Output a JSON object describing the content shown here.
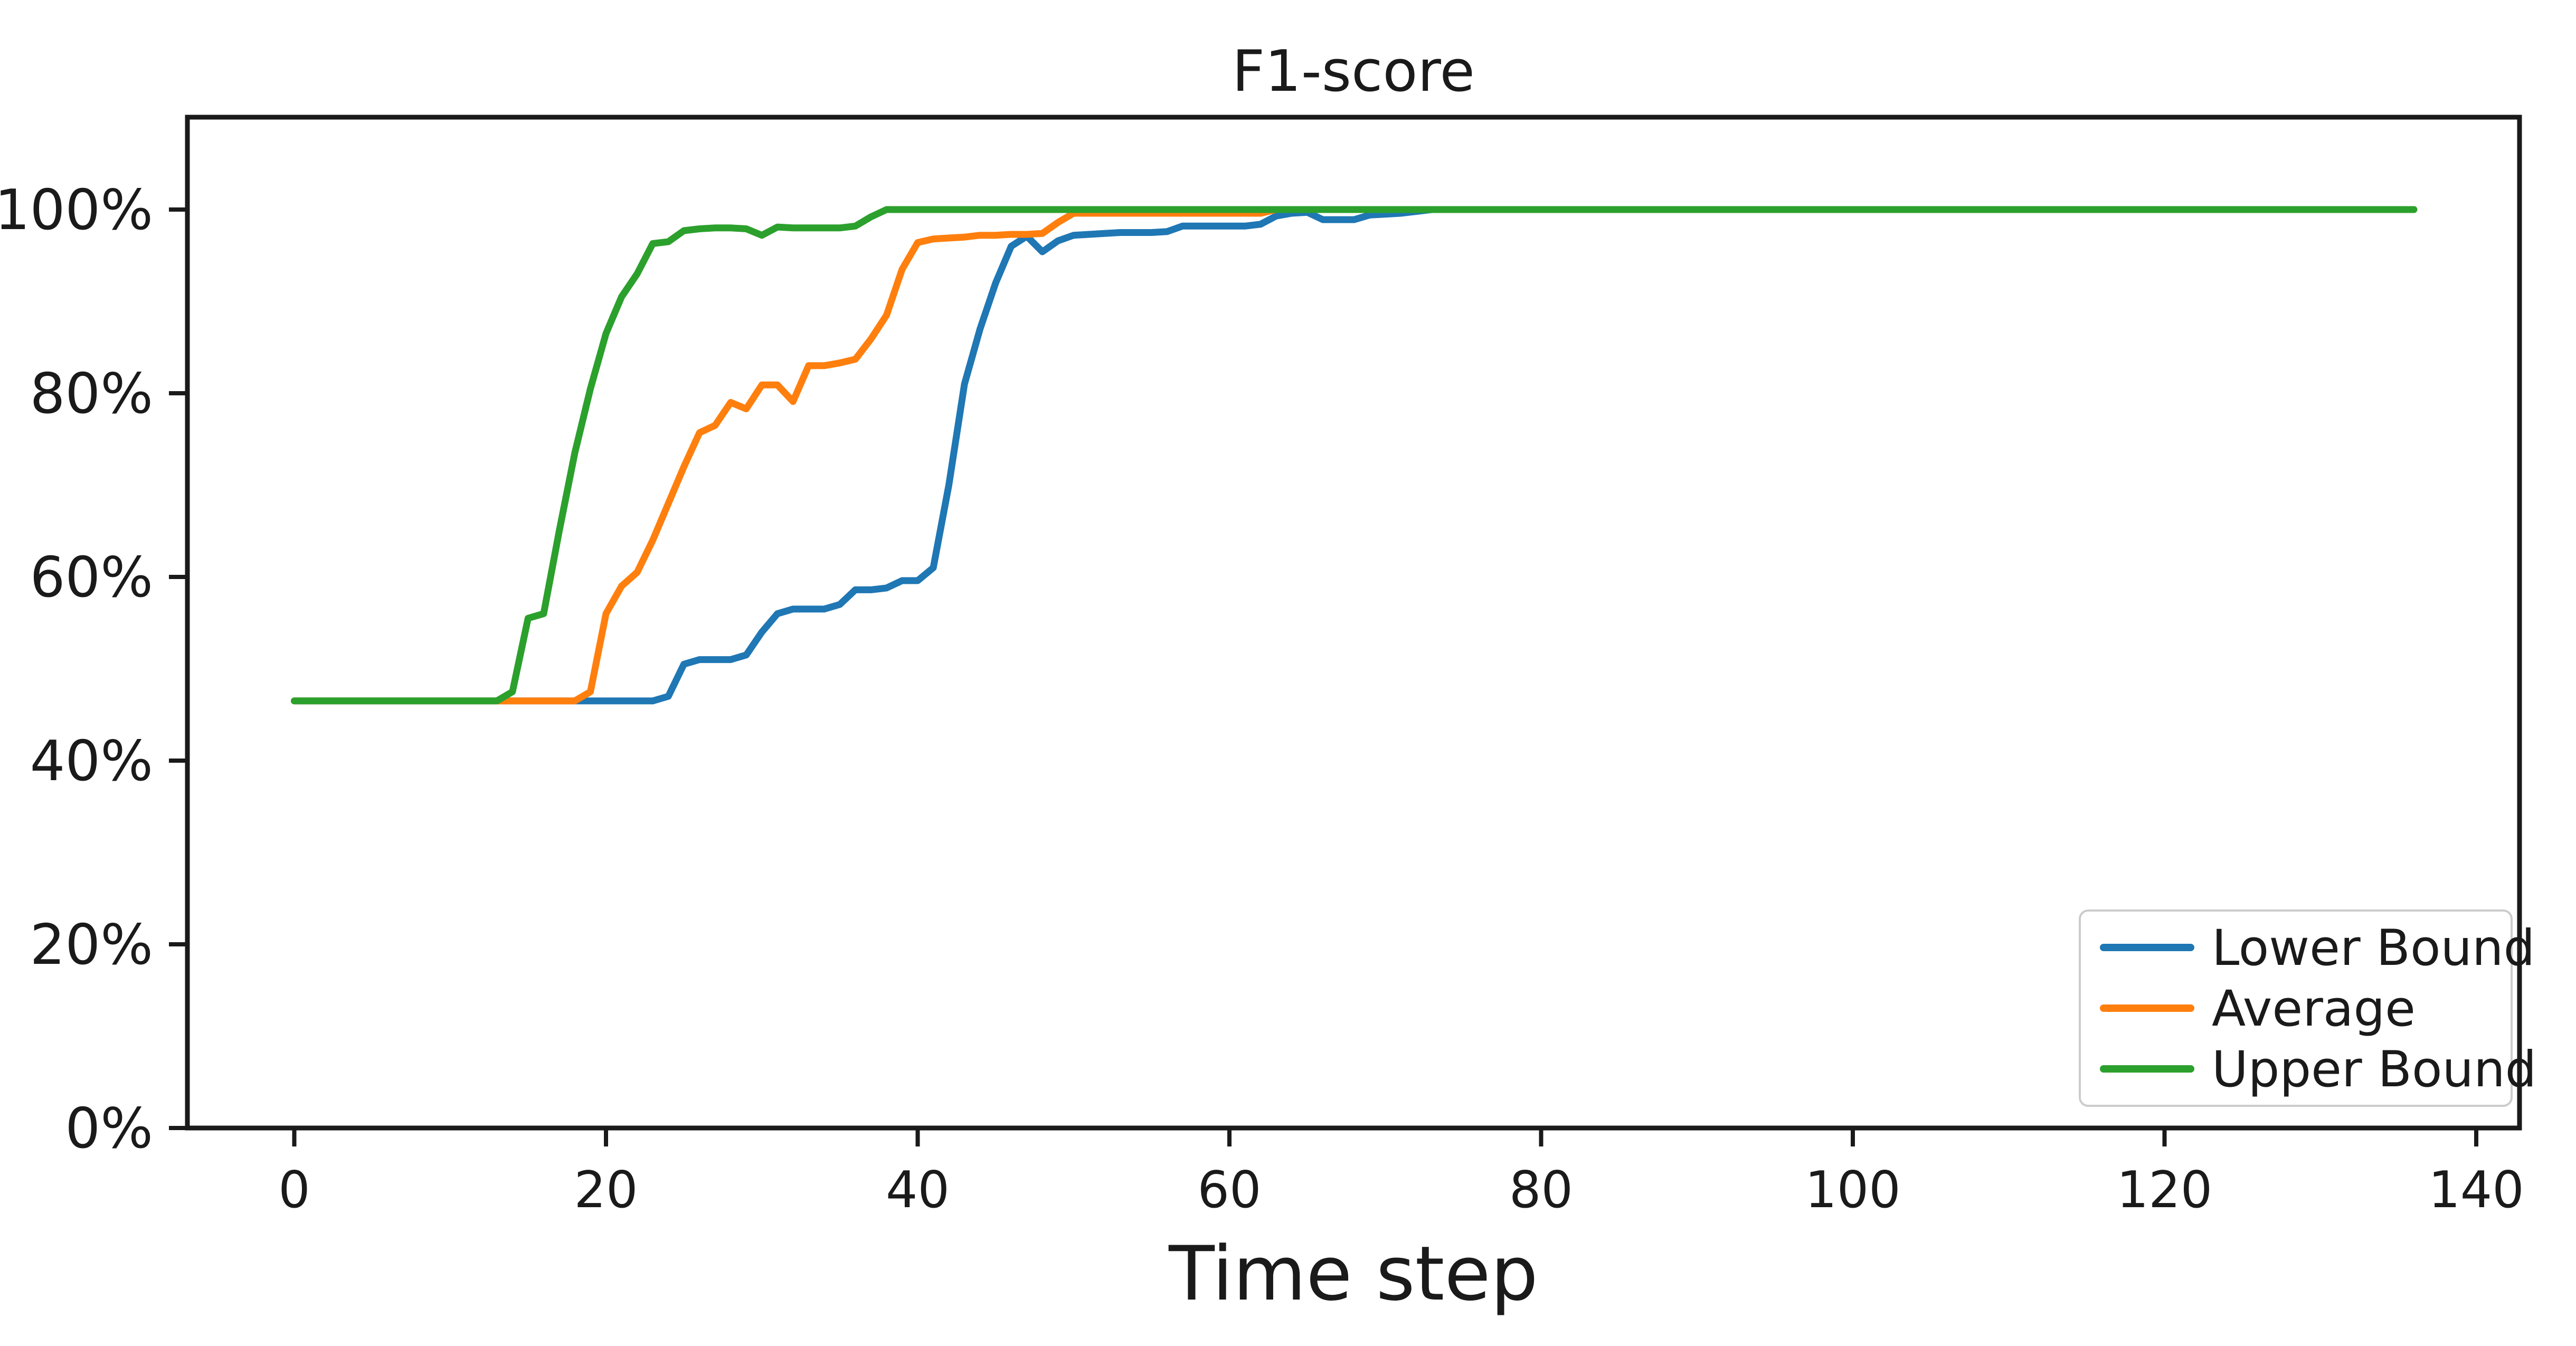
{
  "figure": {
    "background": "#ffffff",
    "spine_color": "#1a1a1a",
    "text_color": "#1a1a1a"
  },
  "chart_data": {
    "type": "line",
    "title": "F1-score",
    "xlabel": "Time step",
    "ylabel": "",
    "x_tick_labels": [
      "0",
      "20",
      "40",
      "60",
      "80",
      "100",
      "120",
      "140"
    ],
    "x_tick_values": [
      0,
      20,
      40,
      60,
      80,
      100,
      120,
      140
    ],
    "y_tick_labels": [
      "0%",
      "20%",
      "40%",
      "60%",
      "80%",
      "100%"
    ],
    "y_tick_values": [
      0,
      20,
      40,
      60,
      80,
      100
    ],
    "xlim": [
      -7,
      143
    ],
    "ylim_percent": [
      0,
      110
    ],
    "grid": false,
    "legend_position": "lower right",
    "x_start": 0,
    "x_step": 1,
    "series": [
      {
        "name": "Lower Bound",
        "color": "#1f77b4",
        "values": [
          46.5,
          46.5,
          46.5,
          46.5,
          46.5,
          46.5,
          46.5,
          46.5,
          46.5,
          46.5,
          46.5,
          46.5,
          46.5,
          46.5,
          46.5,
          46.5,
          46.5,
          46.5,
          46.5,
          46.5,
          46.5,
          46.5,
          46.5,
          46.5,
          47,
          50.5,
          51,
          51,
          51,
          51.5,
          54,
          56,
          56.5,
          56.5,
          56.5,
          57,
          58.6,
          58.6,
          58.8,
          59.6,
          59.6,
          61,
          70,
          81,
          87,
          92,
          96,
          97.1,
          95.4,
          96.6,
          97.2,
          97.3,
          97.4,
          97.5,
          97.5,
          97.5,
          97.6,
          98.2,
          98.2,
          98.2,
          98.2,
          98.2,
          98.4,
          99.3,
          99.6,
          99.7,
          98.9,
          98.9,
          98.9,
          99.4,
          99.5,
          99.6,
          99.8,
          100,
          100,
          100,
          100,
          100,
          100,
          100,
          100,
          100,
          100,
          100,
          100,
          100,
          100,
          100,
          100,
          100,
          100,
          100,
          100,
          100,
          100,
          100,
          100,
          100,
          100,
          100,
          100,
          100,
          100,
          100,
          100,
          100,
          100,
          100,
          100,
          100,
          100,
          100,
          100,
          100,
          100,
          100,
          100,
          100,
          100,
          100,
          100,
          100,
          100,
          100,
          100,
          100,
          100,
          100,
          100,
          100,
          100,
          100,
          100,
          100,
          100,
          100,
          100
        ]
      },
      {
        "name": "Average",
        "color": "#ff7f0e",
        "values": [
          46.5,
          46.5,
          46.5,
          46.5,
          46.5,
          46.5,
          46.5,
          46.5,
          46.5,
          46.5,
          46.5,
          46.5,
          46.5,
          46.5,
          46.5,
          46.5,
          46.5,
          46.5,
          46.5,
          47.5,
          56,
          59,
          60.5,
          64,
          68,
          72,
          75.7,
          76.5,
          79,
          78.3,
          80.9,
          80.9,
          79.1,
          83,
          83,
          83.3,
          83.7,
          85.9,
          88.5,
          93.5,
          96.4,
          96.8,
          96.9,
          97,
          97.2,
          97.2,
          97.3,
          97.3,
          97.4,
          98.6,
          99.6,
          99.6,
          99.6,
          99.6,
          99.6,
          99.6,
          99.6,
          99.6,
          99.6,
          99.6,
          99.6,
          99.6,
          99.6,
          100,
          100,
          100,
          100,
          100,
          100,
          100,
          100,
          100,
          100,
          100,
          100,
          100,
          100,
          100,
          100,
          100,
          100,
          100,
          100,
          100,
          100,
          100,
          100,
          100,
          100,
          100,
          100,
          100,
          100,
          100,
          100,
          100,
          100,
          100,
          100,
          100,
          100,
          100,
          100,
          100,
          100,
          100,
          100,
          100,
          100,
          100,
          100,
          100,
          100,
          100,
          100,
          100,
          100,
          100,
          100,
          100,
          100,
          100,
          100,
          100,
          100,
          100,
          100,
          100,
          100,
          100,
          100,
          100,
          100,
          100,
          100,
          100,
          100
        ]
      },
      {
        "name": "Upper Bound",
        "color": "#2ca02c",
        "values": [
          46.5,
          46.5,
          46.5,
          46.5,
          46.5,
          46.5,
          46.5,
          46.5,
          46.5,
          46.5,
          46.5,
          46.5,
          46.5,
          46.5,
          47.5,
          55.5,
          56,
          65,
          73.5,
          80.5,
          86.5,
          90.5,
          93,
          96.3,
          96.5,
          97.7,
          97.9,
          98,
          98,
          97.9,
          97.2,
          98.1,
          98,
          98,
          98,
          98,
          98.2,
          99.2,
          100,
          100,
          100,
          100,
          100,
          100,
          100,
          100,
          100,
          100,
          100,
          100,
          100,
          100,
          100,
          100,
          100,
          100,
          100,
          100,
          100,
          100,
          100,
          100,
          100,
          100,
          100,
          100,
          100,
          100,
          100,
          100,
          100,
          100,
          100,
          100,
          100,
          100,
          100,
          100,
          100,
          100,
          100,
          100,
          100,
          100,
          100,
          100,
          100,
          100,
          100,
          100,
          100,
          100,
          100,
          100,
          100,
          100,
          100,
          100,
          100,
          100,
          100,
          100,
          100,
          100,
          100,
          100,
          100,
          100,
          100,
          100,
          100,
          100,
          100,
          100,
          100,
          100,
          100,
          100,
          100,
          100,
          100,
          100,
          100,
          100,
          100,
          100,
          100,
          100,
          100,
          100,
          100,
          100,
          100,
          100,
          100,
          100,
          100
        ]
      }
    ]
  },
  "legend": {
    "border_color": "#cccccc",
    "background": "#ffffff"
  }
}
